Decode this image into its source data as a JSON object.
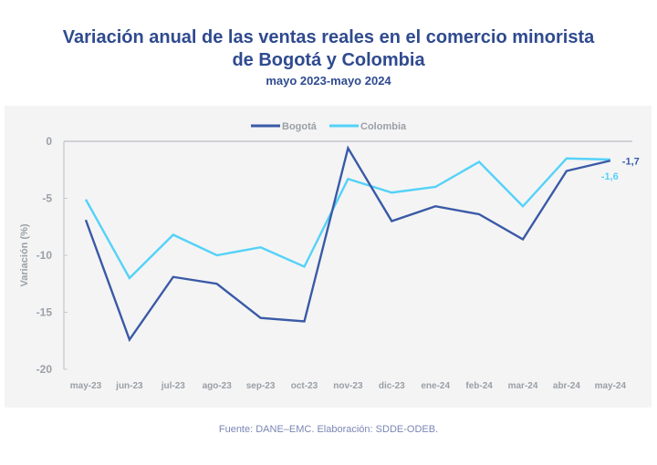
{
  "header": {
    "title_line1": "Variación anual de las ventas reales en el comercio minorista",
    "title_line2": "de Bogotá y Colombia",
    "subtitle": "mayo 2023-mayo 2024"
  },
  "source": "Fuente: DANE–EMC. Elaboración: SDDE-ODEB.",
  "chart_data": {
    "type": "line",
    "title": "Variación anual de las ventas reales en el comercio minorista de Bogotá y Colombia",
    "subtitle": "mayo 2023-mayo 2024",
    "xlabel": "",
    "ylabel": "Variación (%)",
    "categories": [
      "may-23",
      "jun-23",
      "jul-23",
      "ago-23",
      "sep-23",
      "oct-23",
      "nov-23",
      "dic-23",
      "ene-24",
      "feb-24",
      "mar-24",
      "abr-24",
      "may-24"
    ],
    "ylim": [
      -20,
      0
    ],
    "yticks": [
      0,
      -5,
      -10,
      -15,
      -20
    ],
    "ytick_labels": [
      "0",
      "-5",
      "-10",
      "-15",
      "-20"
    ],
    "grid": false,
    "legend_position": "top-center",
    "series": [
      {
        "name": "Bogotá",
        "color": "#3a5aa6",
        "values": [
          -6.9,
          -17.4,
          -11.9,
          -12.5,
          -15.5,
          -15.8,
          -0.6,
          -7.0,
          -5.7,
          -6.4,
          -8.6,
          -2.6,
          -1.7
        ],
        "end_label": "-1,7"
      },
      {
        "name": "Colombia",
        "color": "#54d2f8",
        "values": [
          -5.1,
          -12.0,
          -8.2,
          -10.0,
          -9.3,
          -11.0,
          -3.3,
          -4.5,
          -4.0,
          -1.8,
          -5.7,
          -1.5,
          -1.6
        ],
        "end_label": "-1,6"
      }
    ]
  }
}
